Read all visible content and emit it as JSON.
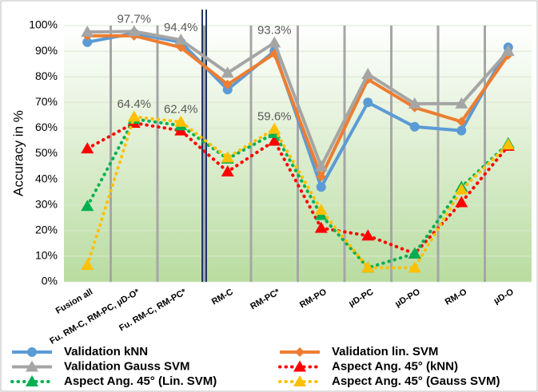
{
  "chart_data": {
    "type": "line",
    "y_label": "Accuracy in %",
    "categories": [
      "Fusion all",
      "Fu. RM-C, RM-PC, µD-O*",
      "Fu. RM-C, RM-PC*",
      "RM-C",
      "RM-PC*",
      "RM-PO",
      "µD-PC",
      "µD-PO",
      "RM-O",
      "µD-O"
    ],
    "ylim": [
      0,
      100
    ],
    "yticks": [
      {
        "value": 0,
        "label": "0%"
      },
      {
        "value": 10,
        "label": "10%"
      },
      {
        "value": 20,
        "label": "20%"
      },
      {
        "value": 30,
        "label": "30%"
      },
      {
        "value": 40,
        "label": "40%"
      },
      {
        "value": 50,
        "label": "50%"
      },
      {
        "value": 60,
        "label": "60%"
      },
      {
        "value": 70,
        "label": "70%"
      },
      {
        "value": 80,
        "label": "80%"
      },
      {
        "value": 90,
        "label": "90%"
      },
      {
        "value": 100,
        "label": "100%"
      }
    ],
    "grid": true,
    "legend": "bottom",
    "series": [
      {
        "name": "Validation kNN",
        "color": "#5b9bd5",
        "marker": "circle",
        "dotted": false,
        "values": [
          93.5,
          97,
          93.5,
          75,
          90,
          37,
          70,
          60.5,
          59,
          91.5
        ]
      },
      {
        "name": "Validation lin. SVM",
        "color": "#ed7d31",
        "marker": "diamond",
        "dotted": false,
        "values": [
          96,
          96,
          91.5,
          77,
          89,
          41,
          79,
          68,
          62.5,
          88.5
        ]
      },
      {
        "name": "Validation Gauss SVM",
        "color": "#a5a5a5",
        "marker": "triangle",
        "dotted": false,
        "values": [
          97.5,
          97.7,
          94.4,
          81.5,
          93.3,
          45,
          81,
          69.5,
          69.5,
          90
        ],
        "value_labels": [
          null,
          "97.7%",
          "94.4%",
          null,
          "93.3%",
          null,
          null,
          null,
          null,
          null
        ]
      },
      {
        "name": "Aspect Ang. 45° (kNN)",
        "color": "#ff0000",
        "marker": "triangle",
        "dotted": true,
        "values": [
          52,
          62,
          59,
          43,
          55,
          21,
          18,
          11,
          31,
          53
        ]
      },
      {
        "name": "Aspect Ang. 45° (Lin. SVM)",
        "color": "#00b050",
        "marker": "triangle",
        "dotted": true,
        "values": [
          29.5,
          63.5,
          61,
          48,
          58,
          26,
          5.5,
          11,
          37,
          54
        ]
      },
      {
        "name": "Aspect Ang. 45° (Gauss SVM)",
        "color": "#ffc000",
        "marker": "triangle",
        "dotted": true,
        "values": [
          6.5,
          64.4,
          62.4,
          48.5,
          59.6,
          28,
          5.5,
          5.5,
          36,
          53.5
        ],
        "value_labels": [
          null,
          "64.4%",
          "62.4%",
          null,
          "59.6%",
          null,
          null,
          null,
          null,
          null
        ]
      }
    ]
  }
}
